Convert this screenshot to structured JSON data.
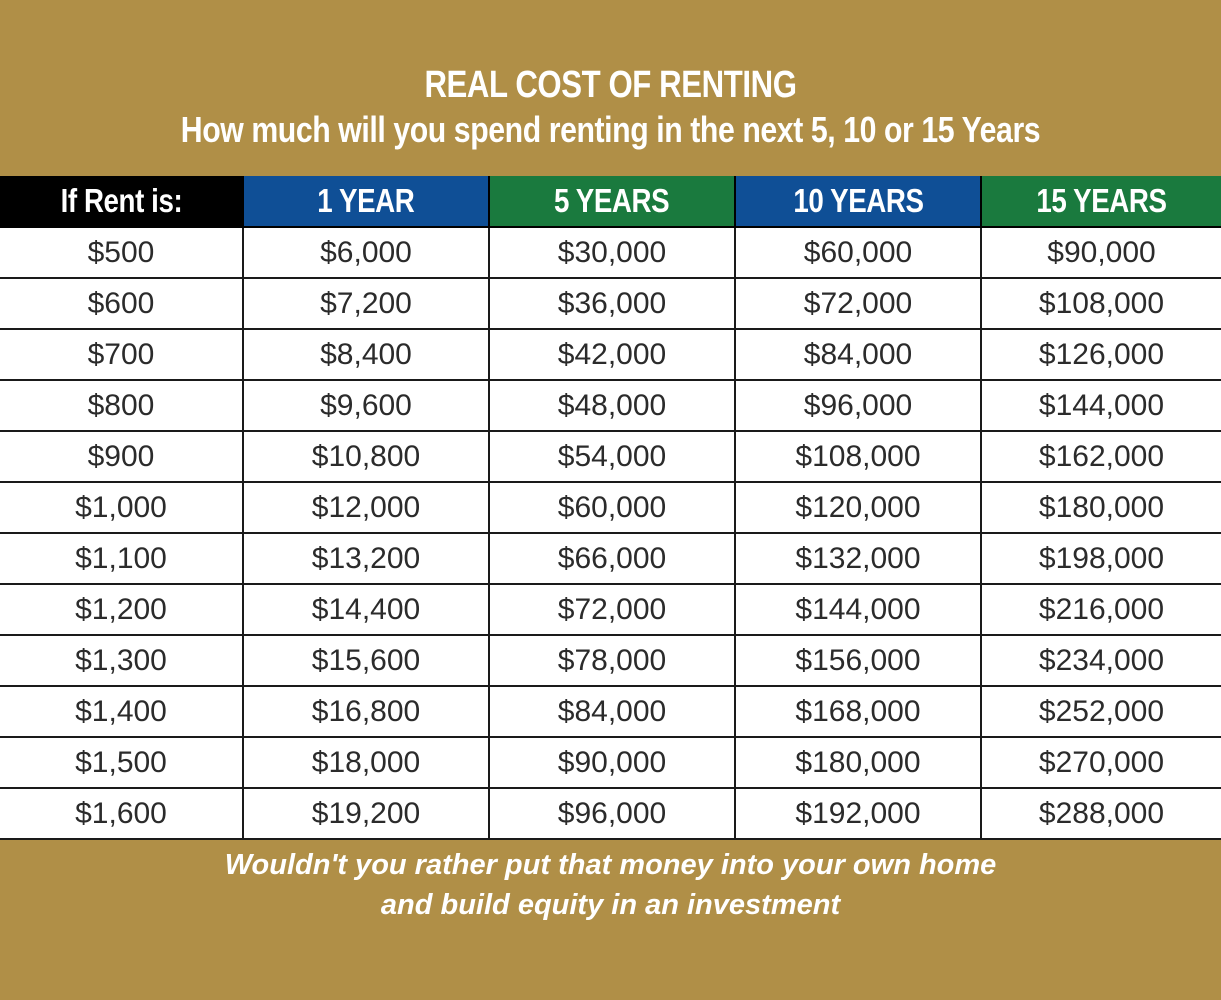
{
  "chart_data": {
    "type": "table",
    "title": "REAL COST OF RENTING",
    "subtitle": "How much will you spend renting in the next 5, 10 or 15  Years",
    "columns": [
      "If Rent is:",
      "1 YEAR",
      "5 YEARS",
      "10 YEARS",
      "15 YEARS"
    ],
    "rows": [
      [
        "$500",
        "$6,000",
        "$30,000",
        "$60,000",
        "$90,000"
      ],
      [
        "$600",
        "$7,200",
        "$36,000",
        "$72,000",
        "$108,000"
      ],
      [
        "$700",
        "$8,400",
        "$42,000",
        "$84,000",
        "$126,000"
      ],
      [
        "$800",
        "$9,600",
        "$48,000",
        "$96,000",
        "$144,000"
      ],
      [
        "$900",
        "$10,800",
        "$54,000",
        "$108,000",
        "$162,000"
      ],
      [
        "$1,000",
        "$12,000",
        "$60,000",
        "$120,000",
        "$180,000"
      ],
      [
        "$1,100",
        "$13,200",
        "$66,000",
        "$132,000",
        "$198,000"
      ],
      [
        "$1,200",
        "$14,400",
        "$72,000",
        "$144,000",
        "$216,000"
      ],
      [
        "$1,300",
        "$15,600",
        "$78,000",
        "$156,000",
        "$234,000"
      ],
      [
        "$1,400",
        "$16,800",
        "$84,000",
        "$168,000",
        "$252,000"
      ],
      [
        "$1,500",
        "$18,000",
        "$90,000",
        "$180,000",
        "$270,000"
      ],
      [
        "$1,600",
        "$19,200",
        "$96,000",
        "$192,000",
        "$288,000"
      ]
    ],
    "footer": [
      "Wouldn't you rather put that money into your own home",
      "and build equity in an investment"
    ]
  },
  "colors": {
    "background": "#b08f47",
    "header_black": "#000000",
    "header_blue": "#0f4f96",
    "header_green": "#1a7a3e",
    "text_white": "#ffffff",
    "cell_text": "#2b2b2b"
  }
}
